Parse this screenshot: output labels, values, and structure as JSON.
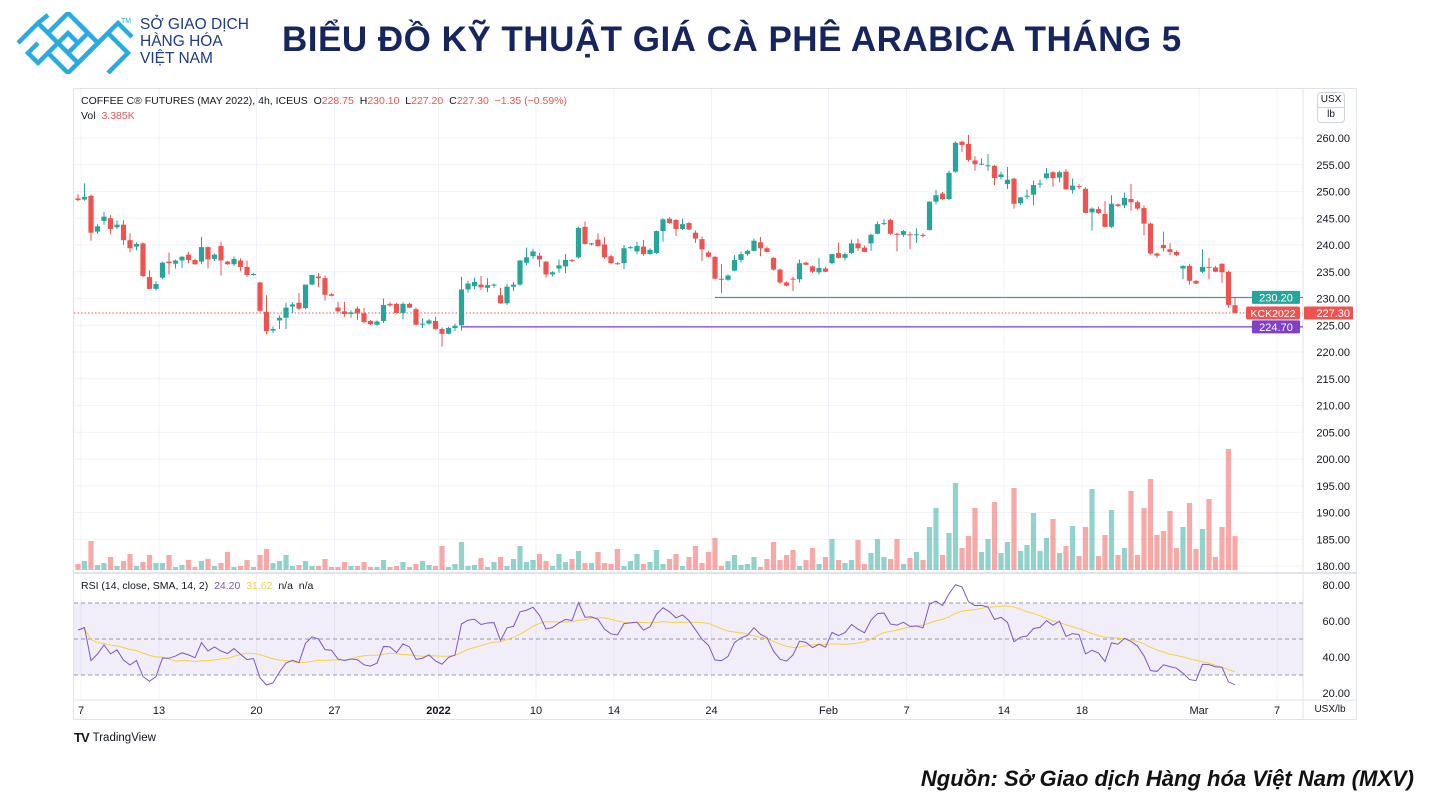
{
  "header": {
    "logo_text": [
      "SỞ GIAO DỊCH",
      "HÀNG HÓA",
      "VIỆT NAM"
    ],
    "logo_tm": "TM",
    "title": "BIỂU ĐỒ KỸ THUẬT GIÁ CÀ PHÊ ARABICA THÁNG 5"
  },
  "footer": {
    "source": "Nguồn: Sở Giao dịch Hàng hóa Việt Nam (MXV)",
    "tradingview": "TradingView"
  },
  "legend": {
    "symbol": "COFFEE C® FUTURES (MAY 2022), 4h, ICEUS",
    "o_label": "O",
    "o": "228.75",
    "h_label": "H",
    "h": "230.10",
    "l_label": "L",
    "l": "227.20",
    "c_label": "C",
    "c": "227.30",
    "change": "−1.35 (−0.59%)",
    "vol_label": "Vol",
    "vol": "3.385K"
  },
  "rsi_legend": {
    "label": "RSI (14, close, SMA, 14, 2)",
    "rsi": "24.20",
    "sma": "31.62",
    "na1": "n/a",
    "na2": "n/a"
  },
  "unit": {
    "top": "USX",
    "bottom": "lb"
  },
  "colors": {
    "up": "#26a69a",
    "down": "#ef5350",
    "rsi": "#7e57c2",
    "rsi_sma": "#f5d142",
    "support": "#26a69a",
    "support2": "#7e3fc9"
  },
  "chart_data": {
    "type": "candlestick",
    "title": "COFFEE C® FUTURES (MAY 2022), 4h, ICEUS",
    "ylabel": "USX/lb",
    "ylim": [
      180,
      265
    ],
    "yticks": [
      "260.00",
      "255.00",
      "250.00",
      "245.00",
      "240.00",
      "235.00",
      "230.00",
      "225.00",
      "220.00",
      "215.00",
      "210.00",
      "205.00",
      "200.00",
      "195.00",
      "190.00",
      "185.00",
      "180.00"
    ],
    "ytick_values": [
      260,
      255,
      250,
      245,
      240,
      235,
      230,
      225,
      220,
      215,
      210,
      205,
      200,
      195,
      190,
      185,
      180
    ],
    "xticks": [
      {
        "label": "7",
        "index": 0
      },
      {
        "label": "13",
        "index": 12
      },
      {
        "label": "20",
        "index": 27
      },
      {
        "label": "27",
        "index": 39
      },
      {
        "label": "2022",
        "index": 55,
        "bold": true
      },
      {
        "label": "10",
        "index": 70
      },
      {
        "label": "14",
        "index": 82
      },
      {
        "label": "24",
        "index": 97
      },
      {
        "label": "Feb",
        "index": 115
      },
      {
        "label": "7",
        "index": 127
      },
      {
        "label": "14",
        "index": 142
      },
      {
        "label": "18",
        "index": 154
      },
      {
        "label": "Mar",
        "index": 172
      },
      {
        "label": "7",
        "index": 184
      }
    ],
    "ohlc": [
      [
        248.7,
        249.5,
        248.2,
        248.4
      ],
      [
        248.5,
        251.5,
        248.3,
        249.0
      ],
      [
        249.2,
        249.4,
        240.8,
        242.3
      ],
      [
        242.5,
        243.9,
        242.1,
        243.5
      ],
      [
        244.5,
        246.2,
        243.8,
        245.3
      ],
      [
        245.0,
        245.6,
        242.0,
        243.0
      ],
      [
        243.3,
        244.6,
        243.0,
        243.8
      ],
      [
        243.8,
        244.6,
        240.0,
        240.9
      ],
      [
        240.9,
        242.2,
        238.6,
        239.4
      ],
      [
        239.7,
        240.5,
        239.0,
        240.2
      ],
      [
        240.3,
        240.5,
        234.0,
        234.2
      ],
      [
        234.0,
        235.3,
        231.8,
        231.8
      ],
      [
        231.8,
        233.2,
        231.5,
        232.7
      ],
      [
        233.9,
        236.9,
        233.6,
        236.7
      ],
      [
        236.9,
        238.6,
        234.5,
        236.6
      ],
      [
        236.5,
        237.3,
        235.6,
        237.1
      ],
      [
        237.1,
        238.0,
        235.7,
        237.8
      ],
      [
        238.2,
        238.7,
        236.6,
        237.2
      ],
      [
        237.2,
        237.4,
        236.3,
        236.4
      ],
      [
        236.9,
        241.5,
        236.4,
        239.6
      ],
      [
        239.6,
        239.7,
        235.6,
        237.3
      ],
      [
        237.4,
        238.4,
        237.0,
        238.2
      ],
      [
        239.8,
        240.6,
        234.3,
        237.1
      ],
      [
        236.9,
        237.0,
        236.3,
        236.4
      ],
      [
        236.4,
        237.9,
        236.1,
        237.4
      ],
      [
        237.1,
        237.5,
        235.1,
        235.9
      ],
      [
        235.9,
        237.1,
        234.1,
        234.4
      ],
      [
        234.4,
        234.8,
        234.3,
        234.6
      ],
      [
        233.0,
        233.1,
        227.5,
        227.7
      ],
      [
        227.5,
        230.6,
        223.3,
        223.9
      ],
      [
        224.0,
        224.8,
        223.5,
        224.3
      ],
      [
        225.9,
        226.8,
        224.3,
        226.4
      ],
      [
        226.4,
        229.2,
        224.3,
        228.3
      ],
      [
        228.5,
        229.3,
        227.3,
        228.9
      ],
      [
        229.2,
        231.0,
        227.8,
        228.1
      ],
      [
        228.2,
        232.6,
        228.0,
        232.6
      ],
      [
        232.6,
        234.4,
        232.5,
        234.4
      ],
      [
        234.1,
        234.8,
        232.1,
        233.8
      ],
      [
        233.8,
        234.3,
        229.6,
        230.7
      ],
      [
        230.8,
        231.0,
        230.4,
        230.5
      ],
      [
        228.3,
        229.4,
        227.4,
        227.6
      ],
      [
        227.6,
        229.4,
        226.6,
        227.1
      ],
      [
        227.1,
        227.8,
        226.4,
        227.4
      ],
      [
        228.1,
        228.5,
        226.0,
        227.2
      ],
      [
        227.2,
        228.2,
        225.3,
        225.6
      ],
      [
        225.8,
        226.0,
        225.0,
        225.2
      ],
      [
        225.1,
        225.9,
        224.9,
        225.7
      ],
      [
        225.8,
        230.0,
        225.4,
        228.8
      ],
      [
        229.0,
        229.3,
        228.5,
        228.7
      ],
      [
        229.0,
        229.2,
        227.2,
        227.3
      ],
      [
        227.3,
        229.3,
        226.1,
        229.0
      ],
      [
        229.0,
        229.2,
        228.2,
        228.3
      ],
      [
        228.0,
        228.3,
        225.0,
        225.1
      ],
      [
        225.1,
        226.3,
        224.5,
        225.3
      ],
      [
        225.3,
        226.2,
        225.1,
        225.9
      ],
      [
        225.8,
        226.6,
        224.2,
        224.3
      ],
      [
        224.3,
        224.6,
        221.0,
        223.4
      ],
      [
        223.4,
        224.7,
        223.3,
        224.5
      ],
      [
        224.5,
        225.3,
        223.9,
        224.9
      ],
      [
        225.0,
        234.1,
        224.0,
        231.7
      ],
      [
        231.7,
        233.3,
        231.1,
        232.8
      ],
      [
        232.3,
        233.9,
        231.7,
        233.1
      ],
      [
        232.6,
        234.2,
        231.6,
        232.1
      ],
      [
        232.0,
        233.8,
        231.2,
        232.5
      ],
      [
        232.4,
        232.8,
        232.0,
        232.6
      ],
      [
        230.6,
        232.0,
        229.0,
        229.1
      ],
      [
        229.1,
        232.7,
        228.8,
        232.2
      ],
      [
        232.2,
        233.1,
        231.4,
        232.6
      ],
      [
        232.6,
        237.2,
        232.4,
        237.1
      ],
      [
        236.7,
        239.5,
        236.2,
        237.7
      ],
      [
        237.9,
        239.3,
        237.4,
        238.8
      ],
      [
        238.0,
        238.5,
        235.9,
        237.3
      ],
      [
        236.9,
        237.0,
        233.9,
        234.5
      ],
      [
        234.5,
        235.1,
        234.1,
        234.9
      ],
      [
        235.6,
        237.3,
        234.8,
        236.2
      ],
      [
        236.0,
        238.3,
        234.7,
        237.2
      ],
      [
        237.2,
        237.4,
        236.8,
        237.0
      ],
      [
        237.7,
        243.4,
        237.5,
        243.2
      ],
      [
        243.4,
        244.4,
        240.1,
        240.2
      ],
      [
        240.1,
        240.4,
        239.9,
        240.3
      ],
      [
        241.0,
        242.2,
        239.7,
        239.8
      ],
      [
        240.1,
        241.5,
        237.4,
        237.7
      ],
      [
        237.9,
        238.2,
        236.5,
        236.6
      ],
      [
        236.6,
        236.8,
        236.3,
        236.4
      ],
      [
        236.6,
        240.0,
        235.5,
        239.4
      ],
      [
        239.4,
        239.8,
        239.3,
        239.6
      ],
      [
        238.8,
        240.6,
        238.3,
        239.8
      ],
      [
        239.7,
        240.9,
        238.0,
        238.3
      ],
      [
        238.3,
        239.4,
        238.2,
        239.1
      ],
      [
        238.5,
        242.7,
        238.3,
        242.6
      ],
      [
        242.6,
        245.0,
        240.6,
        244.8
      ],
      [
        244.9,
        245.2,
        244.0,
        244.1
      ],
      [
        244.7,
        244.8,
        241.7,
        243.0
      ],
      [
        243.0,
        244.9,
        242.8,
        243.9
      ],
      [
        244.1,
        244.3,
        242.8,
        242.9
      ],
      [
        242.3,
        242.7,
        240.4,
        241.2
      ],
      [
        241.1,
        241.6,
        237.0,
        239.2
      ],
      [
        238.6,
        238.9,
        237.7,
        237.8
      ],
      [
        237.8,
        237.9,
        233.6,
        233.7
      ],
      [
        233.7,
        236.4,
        231.0,
        233.5
      ],
      [
        233.5,
        234.5,
        233.3,
        234.3
      ],
      [
        235.2,
        238.1,
        235.1,
        237.2
      ],
      [
        237.2,
        238.8,
        236.7,
        238.3
      ],
      [
        238.3,
        239.1,
        238.0,
        238.9
      ],
      [
        238.9,
        241.2,
        238.8,
        240.8
      ],
      [
        240.5,
        241.5,
        237.9,
        239.4
      ],
      [
        239.4,
        239.7,
        238.6,
        238.7
      ],
      [
        237.6,
        237.7,
        235.2,
        235.4
      ],
      [
        235.4,
        235.6,
        232.8,
        233.0
      ],
      [
        233.0,
        233.2,
        232.3,
        232.4
      ],
      [
        233.7,
        234.1,
        231.4,
        233.6
      ],
      [
        233.6,
        237.3,
        233.0,
        236.6
      ],
      [
        236.7,
        236.9,
        236.2,
        236.3
      ],
      [
        236.0,
        236.2,
        234.8,
        235.0
      ],
      [
        234.9,
        237.6,
        234.5,
        235.7
      ],
      [
        235.6,
        235.9,
        234.9,
        235.0
      ],
      [
        236.6,
        238.3,
        236.4,
        238.3
      ],
      [
        238.5,
        240.5,
        237.5,
        237.6
      ],
      [
        237.6,
        238.6,
        237.1,
        238.3
      ],
      [
        238.5,
        241.0,
        238.3,
        240.3
      ],
      [
        240.3,
        241.2,
        238.9,
        239.4
      ],
      [
        239.5,
        239.9,
        238.7,
        238.7
      ],
      [
        240.3,
        242.1,
        238.9,
        241.9
      ],
      [
        242.1,
        244.4,
        242.0,
        243.9
      ],
      [
        243.9,
        244.8,
        243.7,
        244.1
      ],
      [
        244.7,
        244.9,
        241.9,
        242.1
      ],
      [
        242.1,
        242.3,
        238.8,
        241.9
      ],
      [
        241.9,
        242.8,
        241.5,
        242.6
      ],
      [
        242.0,
        242.5,
        239.2,
        241.9
      ],
      [
        242.0,
        243.1,
        240.4,
        242.0
      ],
      [
        241.9,
        242.2,
        241.4,
        241.7
      ],
      [
        242.8,
        248.2,
        242.7,
        248.1
      ],
      [
        248.1,
        250.3,
        247.6,
        249.3
      ],
      [
        249.6,
        249.9,
        248.4,
        248.6
      ],
      [
        248.6,
        253.9,
        248.4,
        253.5
      ],
      [
        253.7,
        259.4,
        253.5,
        259.1
      ],
      [
        259.3,
        259.5,
        257.4,
        258.7
      ],
      [
        258.9,
        260.6,
        255.6,
        255.9
      ],
      [
        255.8,
        256.6,
        253.9,
        255.1
      ],
      [
        255.2,
        256.2,
        254.9,
        255.2
      ],
      [
        254.8,
        257.0,
        253.9,
        254.9
      ],
      [
        254.8,
        255.0,
        251.2,
        252.5
      ],
      [
        252.7,
        253.7,
        252.2,
        253.2
      ],
      [
        251.4,
        254.6,
        250.5,
        252.2
      ],
      [
        252.4,
        252.6,
        246.8,
        247.7
      ],
      [
        247.8,
        249.0,
        247.5,
        248.9
      ],
      [
        249.2,
        250.4,
        248.6,
        249.2
      ],
      [
        249.4,
        252.0,
        247.4,
        251.2
      ],
      [
        251.3,
        252.2,
        250.7,
        251.5
      ],
      [
        252.5,
        254.4,
        252.3,
        253.4
      ],
      [
        253.6,
        253.8,
        250.9,
        252.5
      ],
      [
        252.6,
        253.9,
        251.7,
        253.6
      ],
      [
        253.7,
        254.2,
        250.3,
        250.4
      ],
      [
        250.3,
        252.4,
        249.6,
        251.1
      ],
      [
        251.0,
        251.4,
        250.4,
        250.9
      ],
      [
        250.5,
        250.8,
        245.9,
        246.0
      ],
      [
        246.1,
        247.0,
        242.7,
        246.8
      ],
      [
        246.7,
        247.2,
        245.8,
        246.0
      ],
      [
        245.8,
        248.2,
        243.3,
        243.4
      ],
      [
        243.4,
        249.3,
        243.2,
        247.7
      ],
      [
        247.6,
        247.7,
        247.1,
        247.3
      ],
      [
        247.4,
        249.8,
        246.9,
        248.8
      ],
      [
        248.6,
        251.4,
        246.4,
        248.0
      ],
      [
        248.0,
        248.3,
        246.6,
        246.8
      ],
      [
        246.9,
        247.4,
        241.8,
        244.0
      ],
      [
        244.0,
        244.2,
        238.2,
        238.4
      ],
      [
        238.4,
        238.6,
        237.6,
        238.0
      ],
      [
        240.0,
        242.5,
        238.8,
        239.4
      ],
      [
        239.2,
        240.4,
        238.1,
        238.7
      ],
      [
        238.7,
        239.0,
        237.9,
        238.1
      ],
      [
        235.6,
        236.2,
        233.6,
        236.1
      ],
      [
        236.1,
        236.4,
        232.6,
        233.3
      ],
      [
        233.3,
        233.4,
        232.7,
        232.8
      ],
      [
        235.0,
        239.2,
        234.8,
        235.9
      ],
      [
        235.9,
        237.6,
        233.6,
        235.8
      ],
      [
        235.8,
        236.1,
        234.9,
        235.0
      ],
      [
        236.5,
        236.6,
        232.9,
        234.9
      ],
      [
        235.0,
        235.2,
        228.2,
        228.8
      ],
      [
        228.75,
        230.1,
        227.2,
        227.3
      ]
    ],
    "volume_k": [
      0.6,
      0.9,
      2.9,
      0.5,
      0.7,
      1.3,
      0.4,
      0.9,
      1.6,
      0.4,
      0.8,
      1.5,
      0.7,
      0.7,
      1.5,
      0.3,
      0.5,
      1.0,
      0.3,
      0.9,
      1.1,
      0.4,
      0.7,
      1.8,
      0.3,
      0.4,
      1.0,
      0.3,
      1.5,
      2.1,
      0.7,
      0.9,
      1.5,
      0.4,
      0.5,
      0.9,
      0.4,
      0.4,
      1.1,
      0.3,
      0.3,
      0.8,
      0.4,
      0.4,
      0.8,
      0.3,
      0.3,
      1.0,
      0.3,
      0.4,
      0.8,
      0.3,
      0.6,
      0.9,
      0.5,
      0.4,
      2.4,
      0.3,
      0.6,
      2.8,
      0.4,
      0.5,
      1.2,
      0.3,
      0.8,
      1.3,
      0.4,
      1.1,
      2.4,
      0.8,
      1.0,
      1.6,
      0.9,
      0.4,
      1.6,
      0.8,
      1.1,
      1.9,
      0.7,
      0.7,
      1.8,
      0.7,
      0.6,
      2.1,
      0.4,
      0.9,
      1.6,
      0.6,
      0.8,
      2.0,
      0.6,
      1.1,
      1.6,
      0.4,
      1.3,
      2.4,
      0.7,
      1.8,
      3.2,
      0.4,
      0.9,
      1.5,
      0.5,
      0.6,
      1.3,
      0.3,
      1.1,
      2.8,
      1.0,
      1.5,
      2.0,
      0.4,
      1.0,
      2.2,
      0.6,
      1.3,
      3.1,
      1.0,
      0.7,
      1.0,
      3.0,
      0.6,
      1.7,
      3.1,
      1.3,
      1.1,
      3.1,
      0.6,
      1.2,
      1.8,
      1.0,
      4.3,
      6.2,
      1.5,
      3.7,
      8.7,
      2.2,
      3.4,
      6.2,
      1.8,
      3.1,
      6.8,
      1.7,
      2.8,
      8.2,
      1.9,
      2.5,
      5.7,
      1.9,
      3.2,
      5.1,
      1.7,
      2.4,
      4.4,
      1.4,
      4.3,
      8.1,
      1.4,
      3.5,
      6.0,
      1.5,
      2.2,
      7.9,
      1.5,
      6.2,
      9.1,
      3.5,
      3.9,
      5.9,
      2.2,
      4.3,
      6.7,
      2.1,
      4.1,
      7.1,
      1.3,
      4.3,
      12.1,
      3.385
    ],
    "price_lines": [
      {
        "label": "230.20",
        "value": 230.2,
        "color": "#26a69a",
        "from_index": 98
      },
      {
        "label": "227.30",
        "value": 227.3,
        "color": "#ef5350",
        "tag": "KCK2022",
        "dotted": true
      },
      {
        "label": "224.70",
        "value": 224.7,
        "color": "#7e3fc9",
        "from_index": 59
      }
    ],
    "rsi": {
      "period": 14,
      "sma_period": 14,
      "levels": [
        70,
        50,
        30
      ],
      "yticks": [
        "80.00",
        "60.00",
        "40.00",
        "20.00"
      ],
      "ytick_values": [
        80,
        60,
        40,
        20
      ],
      "ylim": [
        16,
        86
      ]
    }
  }
}
